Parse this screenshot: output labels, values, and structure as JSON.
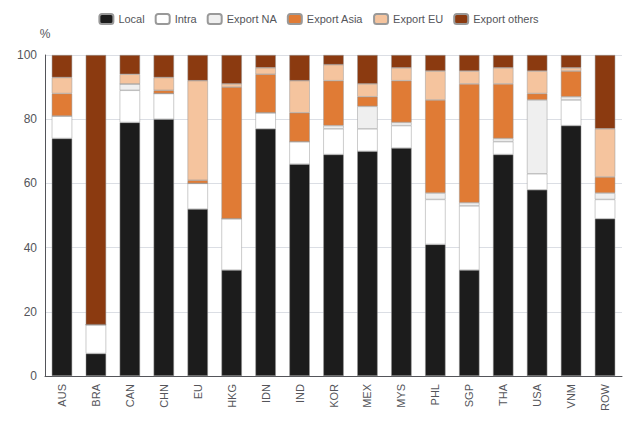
{
  "chart_data": {
    "type": "bar",
    "stacked": true,
    "ylabel": "%",
    "categories": [
      "AUS",
      "BRA",
      "CAN",
      "CHN",
      "EU",
      "HKG",
      "IDN",
      "IND",
      "KOR",
      "MEX",
      "MYS",
      "PHL",
      "SGP",
      "THA",
      "USA",
      "VNM",
      "ROW"
    ],
    "series": [
      {
        "name": "Local",
        "color": "#1c1c1c",
        "values": [
          74,
          7,
          79,
          80,
          52,
          33,
          77,
          66,
          69,
          70,
          71,
          41,
          33,
          69,
          58,
          78,
          49
        ]
      },
      {
        "name": "Intra",
        "color": "#ffffff",
        "values": [
          7,
          9,
          10,
          8,
          8,
          16,
          5,
          7,
          8,
          7,
          7,
          14,
          20,
          4,
          5,
          8,
          6
        ]
      },
      {
        "name": "Export NA",
        "color": "#efefef",
        "values": [
          0,
          0,
          2,
          0,
          0,
          0,
          0,
          0,
          1,
          7,
          1,
          2,
          1,
          1,
          23,
          1,
          2
        ]
      },
      {
        "name": "Export Asia",
        "color": "#e07b35",
        "values": [
          7,
          0,
          0,
          1,
          1,
          41,
          12,
          9,
          14,
          3,
          13,
          29,
          37,
          17,
          2,
          8,
          5
        ]
      },
      {
        "name": "Export EU",
        "color": "#f5c49e",
        "values": [
          5,
          0,
          3,
          4,
          31,
          1,
          2,
          10,
          5,
          4,
          4,
          9,
          4,
          5,
          7,
          1,
          15
        ]
      },
      {
        "name": "Export others",
        "color": "#8b3a10",
        "values": [
          7,
          84,
          6,
          7,
          8,
          9,
          4,
          8,
          3,
          9,
          4,
          5,
          5,
          4,
          5,
          4,
          23
        ]
      }
    ],
    "ylim": [
      0,
      100
    ],
    "yticks": [
      0,
      20,
      40,
      60,
      80,
      100
    ],
    "grid": true,
    "legend": "top"
  }
}
